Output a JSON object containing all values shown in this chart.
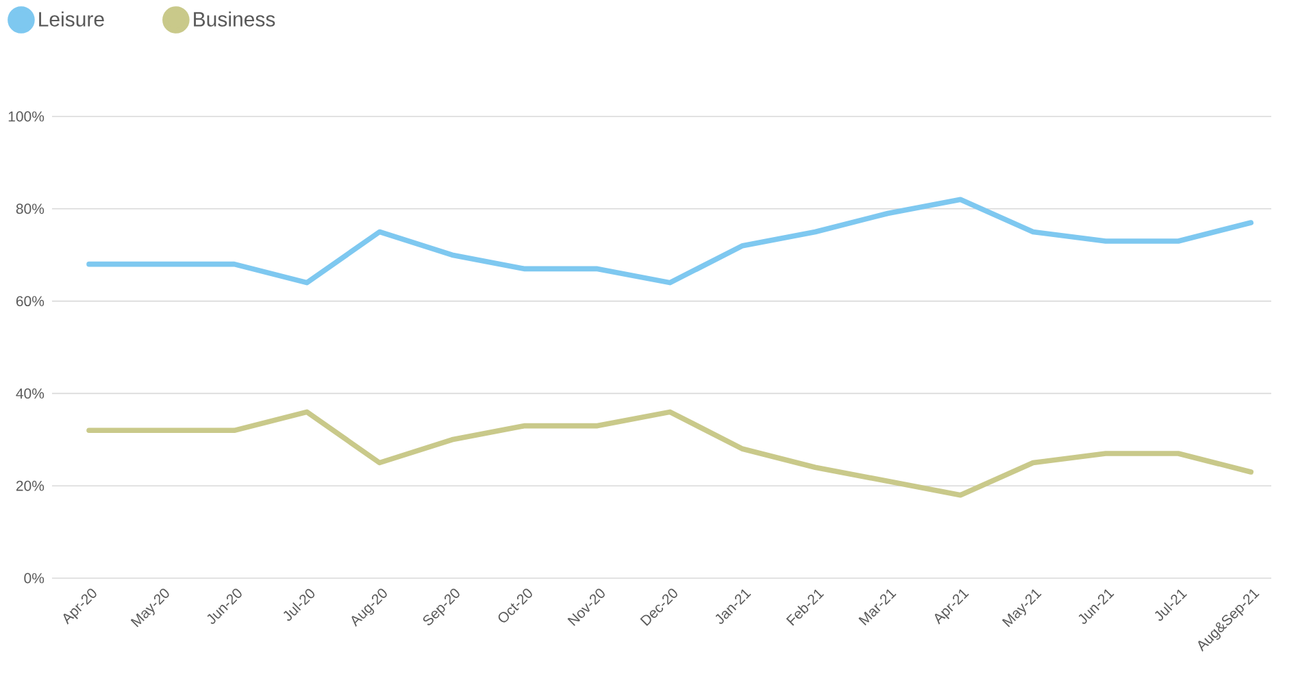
{
  "chart_data": {
    "type": "line",
    "categories": [
      "Apr-20",
      "May-20",
      "Jun-20",
      "Jul-20",
      "Aug-20",
      "Sep-20",
      "Oct-20",
      "Nov-20",
      "Dec-20",
      "Jan-21",
      "Feb-21",
      "Mar-21",
      "Apr-21",
      "May-21",
      "Jun-21",
      "Jul-21",
      "Aug&Sep-21"
    ],
    "series": [
      {
        "name": "Leisure",
        "color": "#7ec8f0",
        "values": [
          68,
          68,
          68,
          64,
          75,
          70,
          67,
          67,
          64,
          72,
          75,
          79,
          82,
          75,
          73,
          73,
          77
        ]
      },
      {
        "name": "Business",
        "color": "#c9c98a",
        "values": [
          32,
          32,
          32,
          36,
          25,
          30,
          33,
          33,
          36,
          28,
          24,
          21,
          18,
          25,
          27,
          27,
          23
        ]
      }
    ],
    "ylim": [
      0,
      100
    ],
    "yticks": [
      {
        "value": 0,
        "label": "0%"
      },
      {
        "value": 20,
        "label": "20%"
      },
      {
        "value": 40,
        "label": "40%"
      },
      {
        "value": 60,
        "label": "60%"
      },
      {
        "value": 80,
        "label": "80%"
      },
      {
        "value": 100,
        "label": "100%"
      }
    ],
    "grid": "y",
    "legend": "top left"
  }
}
